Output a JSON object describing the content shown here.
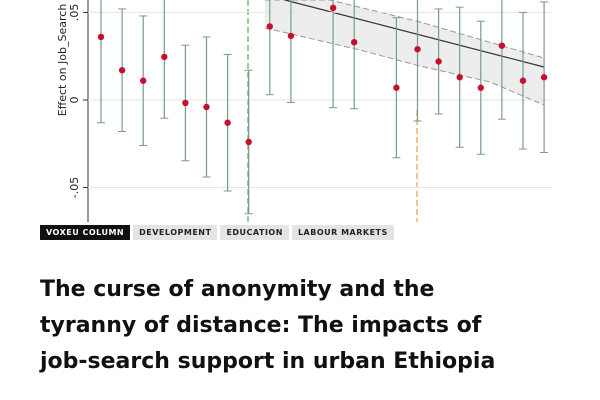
{
  "chart_data": {
    "type": "errorbar",
    "y_label": "Effect on Job_Search",
    "categories": [
      null,
      null,
      null,
      null,
      null,
      null,
      null,
      null,
      null,
      null,
      null,
      null,
      null,
      null,
      null,
      null,
      null,
      null,
      null,
      null,
      null,
      null
    ],
    "values": [
      0.036,
      0.017,
      0.011,
      0.0246,
      -0.0017,
      -0.004,
      -0.013,
      -0.024,
      0.042,
      0.0366,
      null,
      0.0526,
      0.033,
      null,
      0.007,
      0.029,
      0.022,
      0.013,
      0.007,
      0.031,
      0.011,
      0.013
    ],
    "errors": [
      0.049,
      0.035,
      0.037,
      0.035,
      0.033,
      0.04,
      0.039,
      0.041,
      0.039,
      0.038,
      null,
      0.057,
      0.038,
      null,
      0.04,
      0.041,
      0.03,
      0.04,
      0.038,
      0.042,
      0.039,
      0.043
    ],
    "color": "#c8102e",
    "error_color": "#7a9a8e",
    "ylim": [
      -0.0697,
      0.0571
    ],
    "yticks": [
      {
        "value": -0.05,
        "label": "-.05"
      },
      0,
      {
        "value": 0.05,
        "label": ".05"
      }
    ],
    "grid": true
  },
  "tags": [
    "VOXEU COLUMN",
    "DEVELOPMENT",
    "EDUCATION",
    "LABOUR MARKETS"
  ],
  "headline": [
    "The curse of anonymity and the",
    "tyranny of distance: The impacts of",
    "job-search support in urban Ethiopia"
  ]
}
